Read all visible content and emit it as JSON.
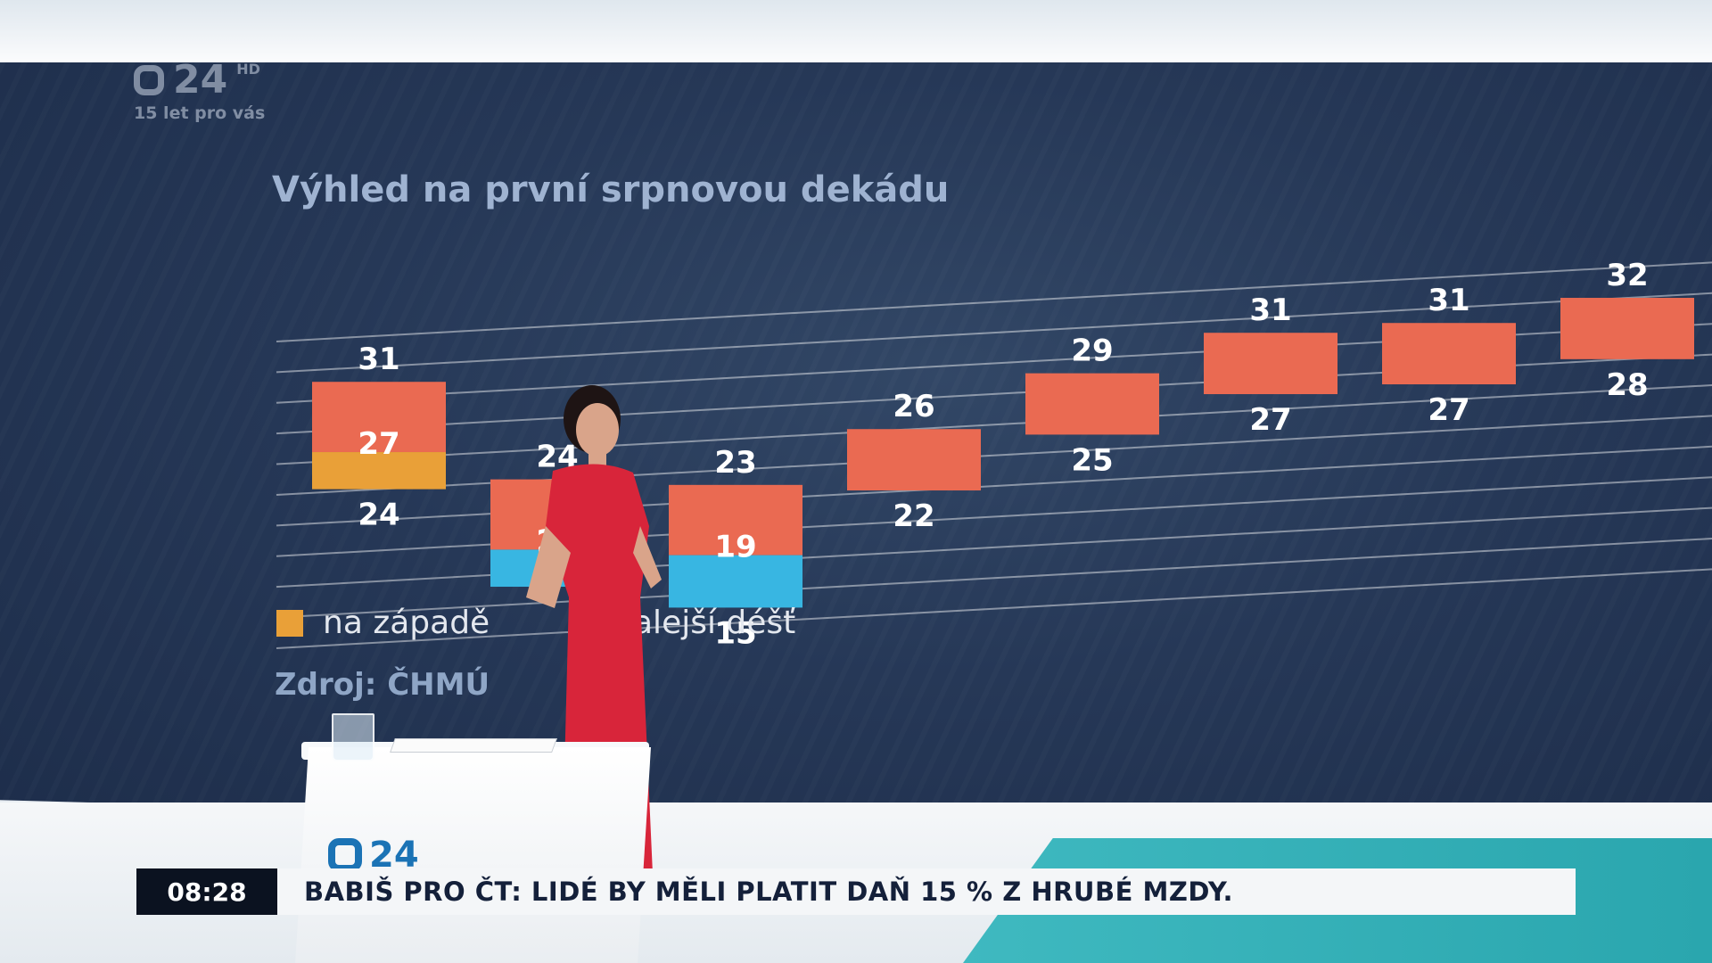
{
  "channel": {
    "logo_number": "24",
    "logo_hd": "HD",
    "tagline": "15 let pro vás"
  },
  "chart": {
    "title": "Výhled na první srpnovou dekádu",
    "legend": {
      "visible_text_left": "na západě",
      "visible_text_right": "alejší déšť",
      "swatch_color": "#e9a038"
    },
    "source": "Zdroj: ČHMÚ",
    "colors": {
      "warm": "#ea6a52",
      "orange": "#e9a038",
      "blue": "#38b6e2"
    }
  },
  "chart_data": {
    "type": "bar",
    "subtype": "floating-range",
    "title": "Výhled na první srpnovou dekádu",
    "series": [
      {
        "max": 31,
        "mid": 27,
        "min": 24,
        "lower_color": "orange"
      },
      {
        "max": 24,
        "mid": 20,
        "min": null,
        "lower_color": "blue"
      },
      {
        "max": 23,
        "mid": 19,
        "min": 15,
        "lower_color": "blue"
      },
      {
        "max": 26,
        "mid": null,
        "min": 22,
        "lower_color": null
      },
      {
        "max": 29,
        "mid": null,
        "min": 25,
        "lower_color": null
      },
      {
        "max": 31,
        "mid": null,
        "min": 27,
        "lower_color": null
      },
      {
        "max": 31,
        "mid": null,
        "min": 27,
        "lower_color": null
      },
      {
        "max": 32,
        "mid": null,
        "min": 28,
        "lower_color": null
      }
    ],
    "grid": true
  },
  "desk": {
    "logo_number": "24"
  },
  "ticker": {
    "time": "08:28",
    "headline": "BABIŠ PRO ČT: LIDÉ BY MĚLI PLATIT DAŇ 15 % Z HRUBÉ MZDY."
  }
}
